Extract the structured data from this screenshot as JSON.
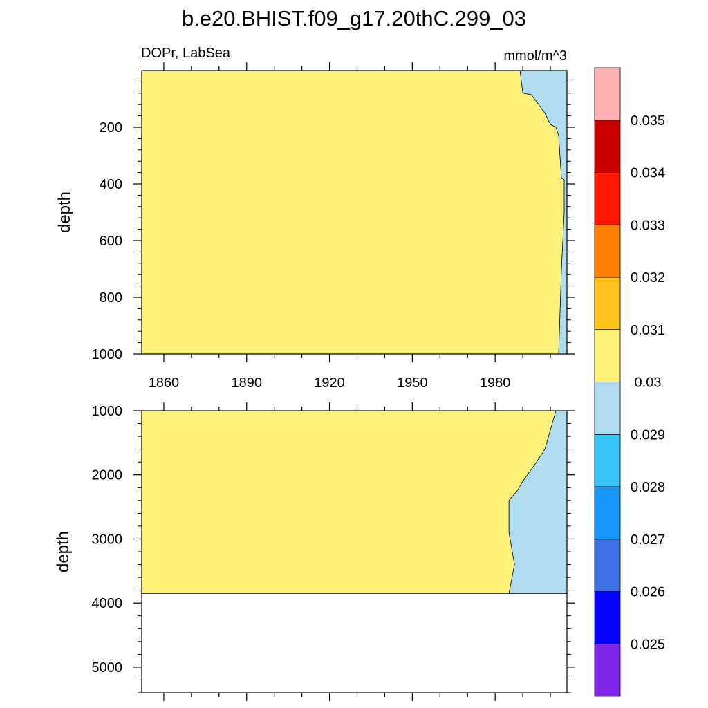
{
  "chart_data": {
    "type": "heatmap",
    "title": "b.e20.BHIST.f09_g17.20thC.299_03",
    "left_subtitle": "DOPr, LabSea",
    "right_subtitle": "mmol/m^3",
    "ylabel": "depth",
    "x_ticks": [
      "1860",
      "1890",
      "1920",
      "1950",
      "1980"
    ],
    "xlim": [
      1852,
      2006
    ],
    "panels": [
      {
        "name": "upper",
        "ylim": [
          0,
          1000
        ],
        "y_ticks": [
          "200",
          "400",
          "600",
          "800",
          "1000"
        ],
        "regions": [
          {
            "level": "0.03-0.031",
            "color": "#fff27a",
            "boundary": [
              [
                1989,
                0
              ],
              [
                1990,
                80
              ],
              [
                1993,
                85
              ],
              [
                1995,
                110
              ],
              [
                1998,
                150
              ],
              [
                2000,
                190
              ],
              [
                2002,
                200
              ],
              [
                2003,
                230
              ],
              [
                2004,
                380
              ],
              [
                2005,
                385
              ],
              [
                2005,
                500
              ],
              [
                2004,
                700
              ],
              [
                2003,
                1000
              ]
            ]
          },
          {
            "level": "0.029-0.03",
            "color": "#b0dcf0"
          }
        ]
      },
      {
        "name": "lower",
        "ylim": [
          1000,
          5400
        ],
        "y_ticks": [
          "1000",
          "2000",
          "3000",
          "4000",
          "5000"
        ],
        "data_bottom": 3850,
        "regions": [
          {
            "level": "0.03-0.031",
            "color": "#fff27a",
            "boundary": [
              [
                2002,
                1000
              ],
              [
                2000,
                1300
              ],
              [
                1998,
                1600
              ],
              [
                1995,
                1800
              ],
              [
                1990,
                2100
              ],
              [
                1988,
                2250
              ],
              [
                1985,
                2400
              ],
              [
                1985,
                2900
              ],
              [
                1987,
                3400
              ],
              [
                1985,
                3850
              ]
            ]
          },
          {
            "level": "0.029-0.03",
            "color": "#b0dcf0"
          }
        ]
      }
    ],
    "colorbar": {
      "labels": [
        "0.025",
        "0.026",
        "0.027",
        "0.028",
        "0.029",
        "0.03",
        "0.031",
        "0.032",
        "0.033",
        "0.034",
        "0.035"
      ],
      "colors": [
        "#8225ea",
        "#0505ff",
        "#3e6fe6",
        "#1898ff",
        "#37c3f6",
        "#b0dcf0",
        "#fff27a",
        "#ffc21a",
        "#ff7e05",
        "#ff1705",
        "#cc0000",
        "#ffb0b0"
      ]
    }
  }
}
